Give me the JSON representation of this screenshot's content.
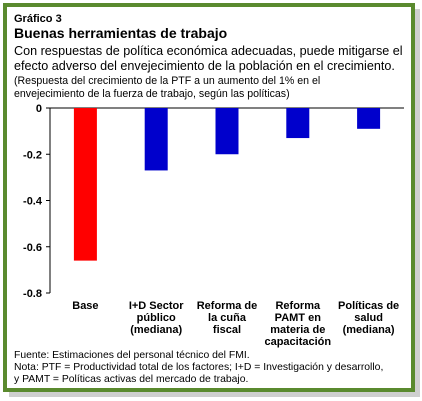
{
  "header": {
    "label": "Gráfico 3",
    "title": "Buenas herramientas de trabajo",
    "subtitle_lines": [
      "Con respuestas de política económica adecuadas, puede mitigarse el",
      "efecto adverso del envejecimiento de la población en el crecimiento."
    ],
    "note_lines": [
      "(Respuesta del crecimiento de la PTF a un aumento del 1% en el",
      "envejecimiento de la fuerza de trabajo, según las políticas)"
    ]
  },
  "footer": {
    "lines": [
      "Fuente: Estimaciones del personal técnico del FMI.",
      "Nota: PTF = Productividad total de los factores; I+D = Investigación y desarrollo,",
      "y PAMT = Políticas activas del mercado de trabajo."
    ]
  },
  "colors": {
    "frame": "#5a8a2e",
    "base_bar": "#ff0000",
    "policy_bar": "#0000cc"
  },
  "chart_data": {
    "type": "bar",
    "categories": [
      [
        "Base"
      ],
      [
        "I+D Sector",
        "público",
        "(mediana)"
      ],
      [
        "Reforma de",
        "la cuña",
        "fiscal"
      ],
      [
        "Reforma",
        "PAMT en",
        "materia de",
        "capacitación"
      ],
      [
        "Políticas de",
        "salud",
        "(mediana)"
      ]
    ],
    "values": [
      -0.66,
      -0.27,
      -0.2,
      -0.13,
      -0.09
    ],
    "bar_colors": [
      "#ff0000",
      "#0000cc",
      "#0000cc",
      "#0000cc",
      "#0000cc"
    ],
    "ylim": [
      -0.8,
      0
    ],
    "yticks": [
      0,
      -0.2,
      -0.4,
      -0.6,
      -0.8
    ],
    "ytick_labels": [
      "0",
      "-0.2",
      "-0.4",
      "-0.6",
      "-0.8"
    ],
    "grid": false,
    "legend": "none"
  }
}
